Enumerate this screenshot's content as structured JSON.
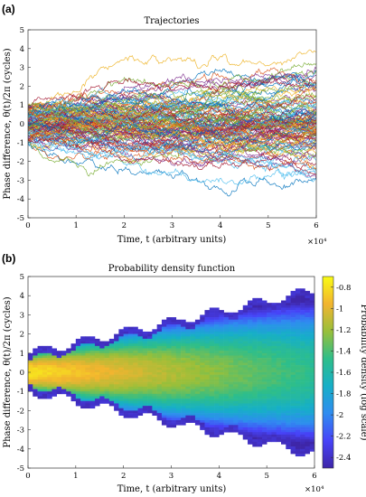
{
  "figure": {
    "panel_a_label": "(a)",
    "panel_b_label": "(b)"
  },
  "chart_data": [
    {
      "type": "line",
      "title": "Trajectories",
      "xlabel": "Time, t (arbitrary units)",
      "ylabel": "Phase difference, θ(t)/2π (cycles)",
      "x_multiplier_label": "×10⁴",
      "xlim": [
        0,
        60000
      ],
      "ylim": [
        -5,
        5
      ],
      "xticks": [
        0,
        1,
        2,
        3,
        4,
        5,
        6
      ],
      "yticks": [
        -5,
        -4,
        -3,
        -2,
        -1,
        0,
        1,
        2,
        3,
        4,
        5
      ],
      "grid": false,
      "legend": "none",
      "series_count": 120,
      "start_value_range": [
        -1,
        1
      ],
      "final_spread_range": [
        -4.5,
        4.3
      ],
      "palette": [
        "#0072BD",
        "#D95319",
        "#EDB120",
        "#7E2F8E",
        "#77AC30",
        "#4DBEEE",
        "#A2142F"
      ]
    },
    {
      "type": "heatmap",
      "title": "Probability density function",
      "xlabel": "Time, t (arbitrary units)",
      "ylabel": "Phase difference, θ(t)/2π (cycles)",
      "x_multiplier_label": "×10⁴",
      "xlim": [
        0,
        60000
      ],
      "ylim": [
        -5,
        5
      ],
      "xticks": [
        0,
        1,
        2,
        3,
        4,
        5,
        6
      ],
      "yticks": [
        -5,
        -4,
        -3,
        -2,
        -1,
        0,
        1,
        2,
        3,
        4,
        5
      ],
      "colorbar": {
        "label": "Probability density (log scale)",
        "range": [
          -2.5,
          -0.7
        ],
        "ticks": [
          -0.8,
          -1,
          -1.2,
          -1.4,
          -1.6,
          -1.8,
          -2,
          -2.2,
          -2.4
        ],
        "colormap": [
          "#3e26a8",
          "#4743f8",
          "#2f8cf0",
          "#16afc7",
          "#2ebe8a",
          "#98bf3a",
          "#f2b42f",
          "#f9fb15"
        ]
      }
    }
  ]
}
